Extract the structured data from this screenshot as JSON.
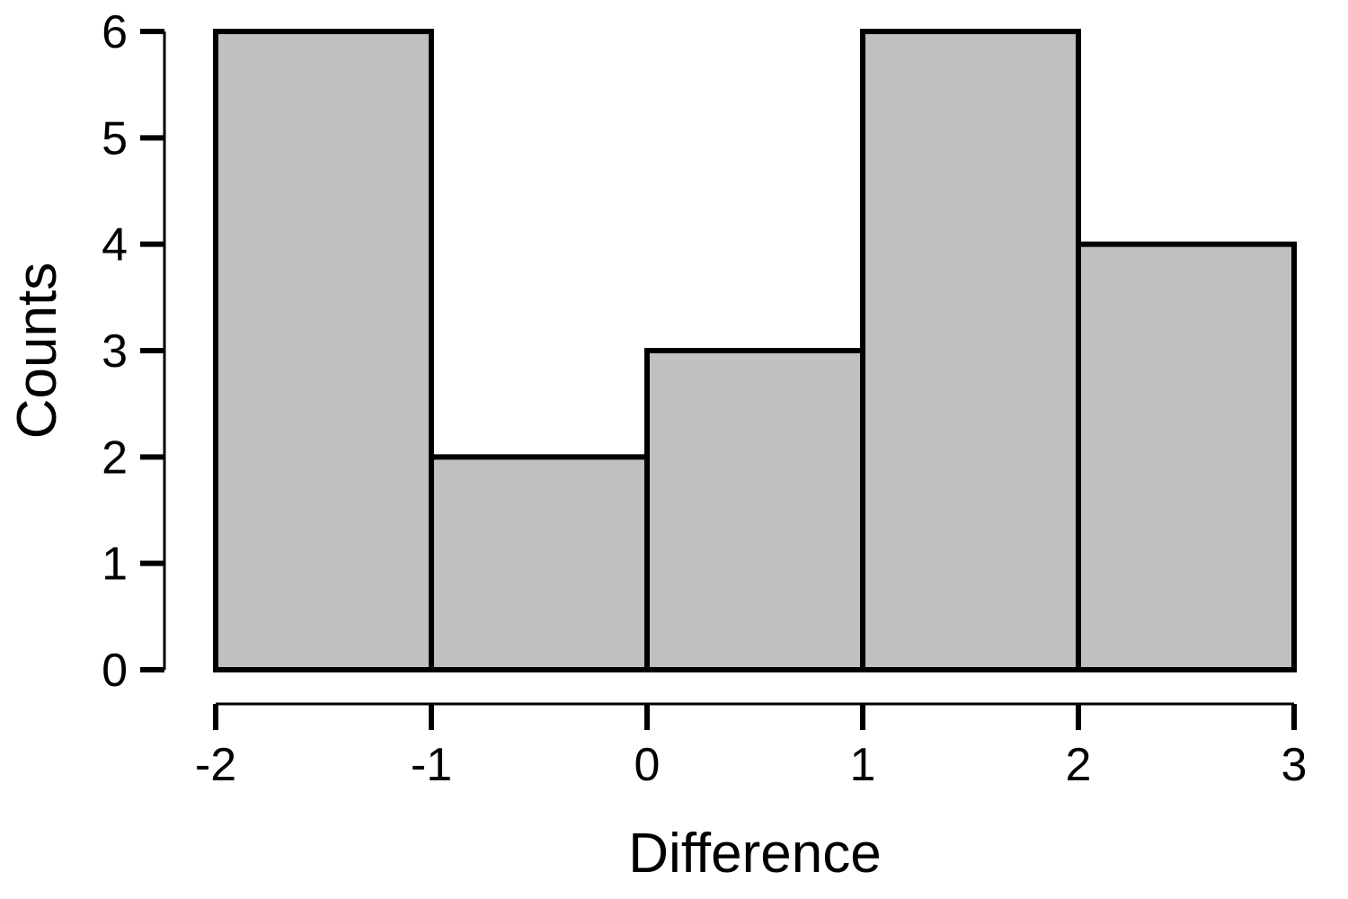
{
  "figure": {
    "background": "#ffffff"
  },
  "chart_data": {
    "type": "bar",
    "subtype": "histogram",
    "title": "",
    "xlabel": "Difference",
    "ylabel": "Counts",
    "bin_edges": [
      -2,
      -1,
      0,
      1,
      2,
      3
    ],
    "counts": [
      6,
      2,
      3,
      6,
      4
    ],
    "x_tick_labels": [
      "-2",
      "-1",
      "0",
      "1",
      "2",
      "3"
    ],
    "x_tick_values": [
      -2,
      -1,
      0,
      1,
      2,
      3
    ],
    "y_tick_labels": [
      "0",
      "1",
      "2",
      "3",
      "4",
      "5",
      "6"
    ],
    "y_tick_values": [
      0,
      1,
      2,
      3,
      4,
      5,
      6
    ],
    "xlim": [
      -2,
      3
    ],
    "ylim": [
      0,
      6
    ],
    "grid": false,
    "legend": false,
    "bar_fill": "#c0c0c0",
    "bar_stroke": "#000000",
    "axis_color": "#000000",
    "text_color": "#000000"
  }
}
